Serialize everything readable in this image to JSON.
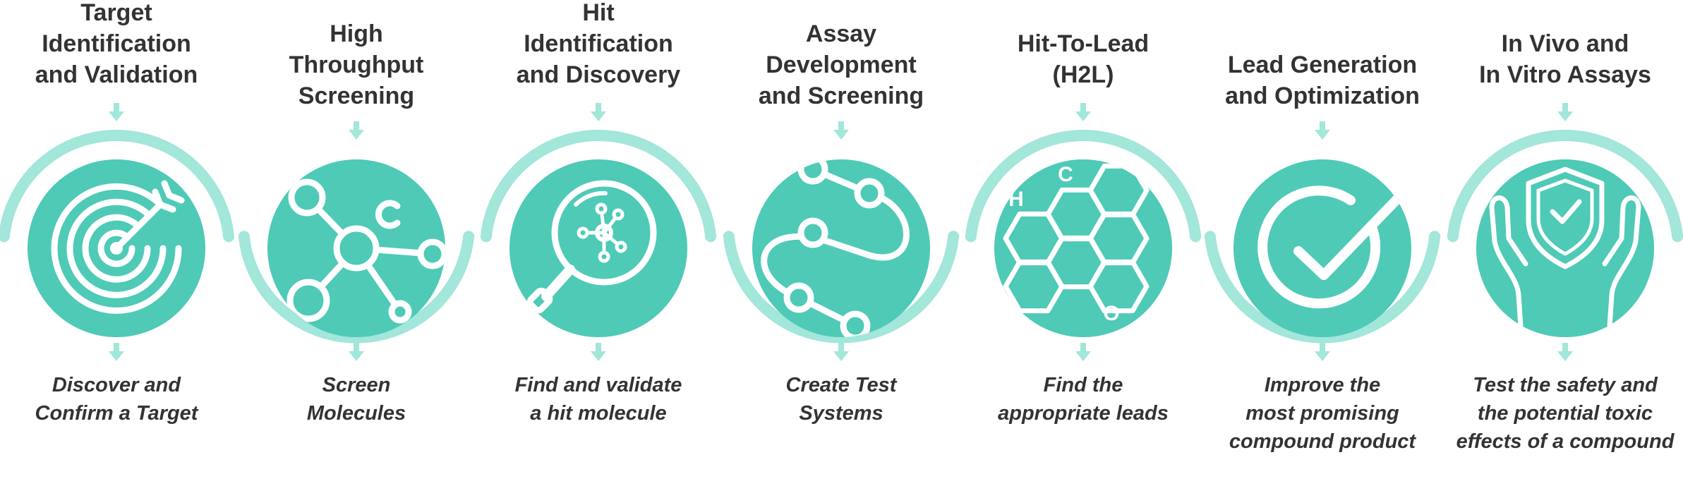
{
  "accent_color": "#4ecab7",
  "ring_color": "#a3e6da",
  "steps": [
    {
      "title_lines": [
        "Target",
        "Identification",
        "and Validation"
      ],
      "desc_lines": [
        "Discover and",
        "Confirm a Target"
      ],
      "icon": "target-arrow-icon"
    },
    {
      "title_lines": [
        "High",
        "Throughput",
        "Screening"
      ],
      "desc_lines": [
        "Screen",
        "Molecules"
      ],
      "icon": "molecule-network-icon"
    },
    {
      "title_lines": [
        "Hit",
        "Identification",
        "and Discovery"
      ],
      "desc_lines": [
        "Find and validate",
        "a hit molecule"
      ],
      "icon": "magnifier-molecule-icon"
    },
    {
      "title_lines": [
        "Assay",
        "Development",
        "and Screening"
      ],
      "desc_lines": [
        "Create Test",
        "Systems"
      ],
      "icon": "workflow-path-icon"
    },
    {
      "title_lines": [
        "Hit-To-Lead",
        "(H2L)"
      ],
      "desc_lines": [
        "Find the",
        "appropriate leads"
      ],
      "icon": "hexagon-chemistry-icon",
      "icon_letters": [
        "H",
        "C",
        "O"
      ]
    },
    {
      "title_lines": [
        "Lead Generation",
        "and Optimization"
      ],
      "desc_lines": [
        "Improve the",
        "most promising",
        "compound product"
      ],
      "icon": "check-circle-icon"
    },
    {
      "title_lines": [
        "In Vivo and",
        "In Vitro Assays"
      ],
      "desc_lines": [
        "Test the safety and",
        "the potential toxic",
        "effects of a compound"
      ],
      "icon": "hands-shield-icon"
    }
  ]
}
